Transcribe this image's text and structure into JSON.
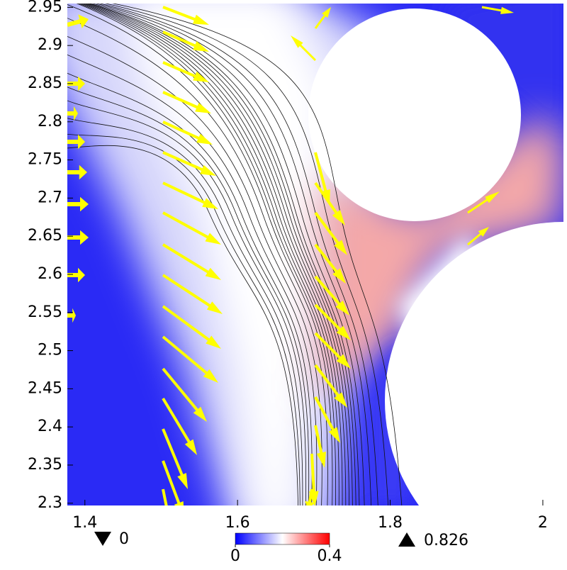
{
  "chart_data": {
    "type": "field",
    "xlim": [
      1.377,
      2.027
    ],
    "ylim": [
      2.297,
      2.955
    ],
    "xticks": [
      1.4,
      1.6,
      1.8,
      2
    ],
    "yticks": [
      2.3,
      2.35,
      2.4,
      2.45,
      2.5,
      2.55,
      2.6,
      2.65,
      2.7,
      2.75,
      2.8,
      2.85,
      2.9,
      2.95
    ],
    "colormap": [
      "#0000ff",
      "#ffffff",
      "#ff0000"
    ],
    "colorbar": {
      "lim": [
        0,
        0.4
      ],
      "ticks": [
        0,
        0.4
      ]
    },
    "min": 0,
    "max": 0.826
  }
}
